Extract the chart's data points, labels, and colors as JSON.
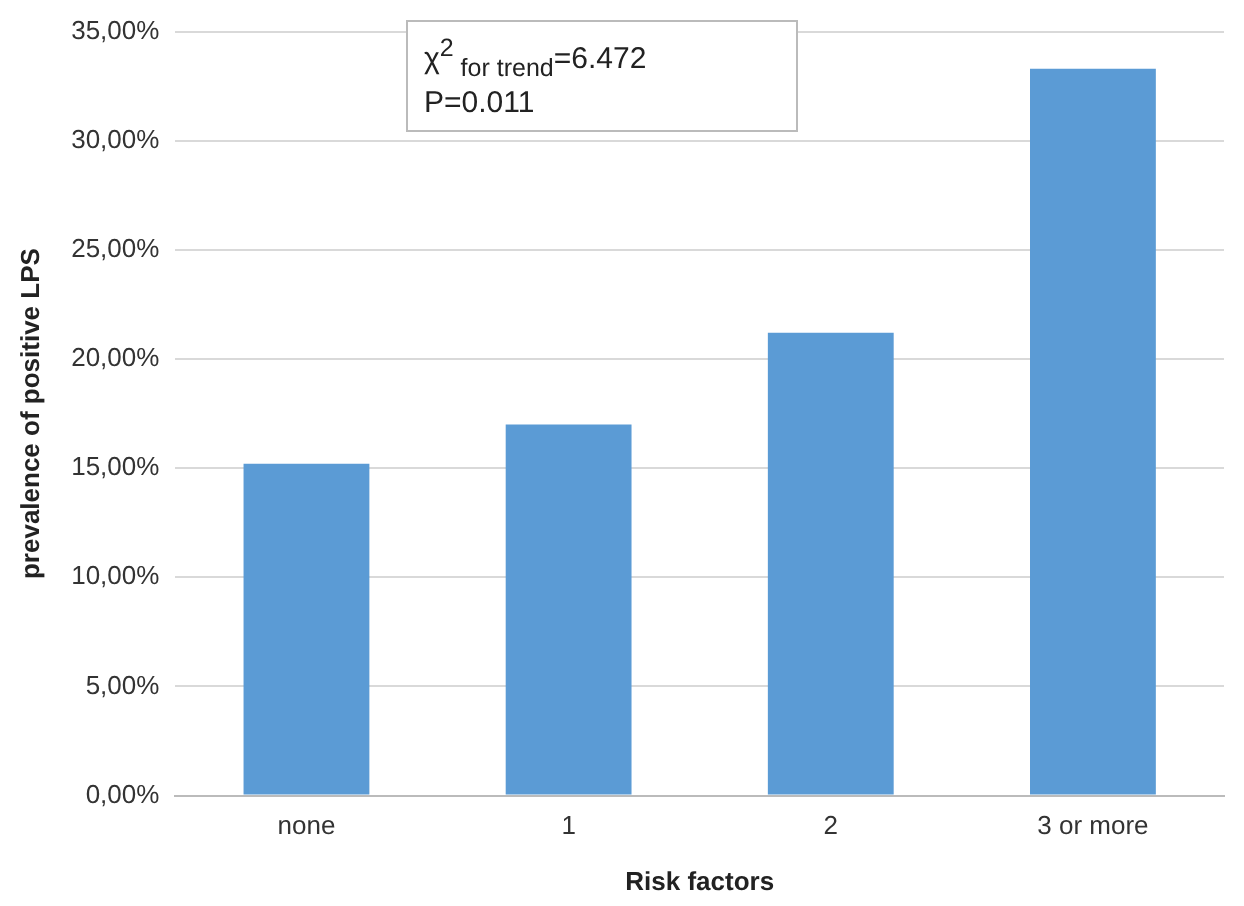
{
  "chart_data": {
    "type": "bar",
    "xlabel": "Risk factors",
    "ylabel": "prevalence of positive LPS",
    "categories": [
      "none",
      "1",
      "2",
      "3 or more"
    ],
    "values": [
      15.2,
      17.0,
      21.2,
      33.3
    ],
    "color": "#5b9bd5",
    "ylim": [
      0,
      35
    ],
    "yticks": [
      {
        "value": 0,
        "label": "0,00%"
      },
      {
        "value": 5,
        "label": "5,00%"
      },
      {
        "value": 10,
        "label": "10,00%"
      },
      {
        "value": 15,
        "label": "15,00%"
      },
      {
        "value": 20,
        "label": "20,00%"
      },
      {
        "value": 25,
        "label": "25,00%"
      },
      {
        "value": 30,
        "label": "30,00%"
      },
      {
        "value": 35,
        "label": "35,00%"
      }
    ],
    "grid": "y",
    "legend": false,
    "annotations": [
      "χ$^{2}$$_{ for trend}$=6.472",
      "P=0.011"
    ]
  }
}
